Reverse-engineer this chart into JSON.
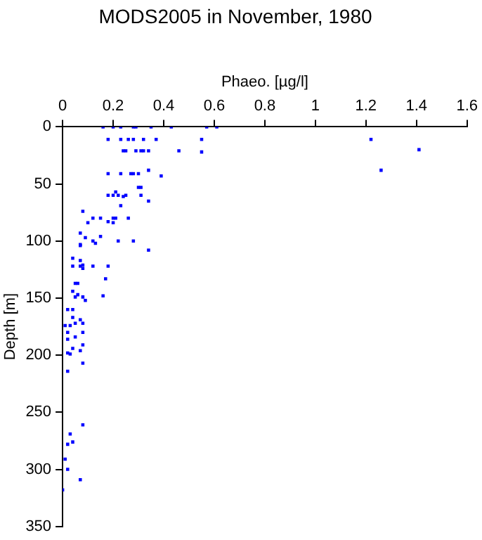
{
  "chart_data": {
    "type": "scatter",
    "title": "MODS2005 in November, 1980",
    "xlabel": "Phaeo. [µg/l]",
    "ylabel": "Depth [m]",
    "x": [
      0.16,
      0.2,
      0.23,
      0.28,
      0.29,
      0.35,
      0.43,
      0.57,
      0.61,
      0.18,
      0.23,
      0.26,
      0.28,
      0.32,
      0.37,
      0.55,
      1.22,
      1.41,
      1.26,
      0.24,
      0.25,
      0.29,
      0.31,
      0.32,
      0.34,
      0.46,
      0.55,
      0.18,
      0.23,
      0.27,
      0.28,
      0.3,
      0.34,
      0.39,
      0.3,
      0.31,
      0.18,
      0.2,
      0.22,
      0.25,
      0.31,
      0.24,
      0.21,
      0.34,
      0.23,
      0.08,
      0.12,
      0.15,
      0.2,
      0.21,
      0.26,
      0.18,
      0.1,
      0.2,
      0.07,
      0.09,
      0.15,
      0.12,
      0.13,
      0.07,
      0.22,
      0.28,
      0.34,
      0.07,
      0.04,
      0.07,
      0.08,
      0.04,
      0.07,
      0.08,
      0.12,
      0.18,
      0.17,
      0.05,
      0.06,
      0.04,
      0.06,
      0.05,
      0.08,
      0.09,
      0.16,
      0.02,
      0.04,
      0.04,
      0.07,
      0.08,
      0.01,
      0.03,
      0.05,
      0.02,
      0.08,
      0.02,
      0.05,
      0.08,
      0.04,
      0.07,
      0.02,
      0.03,
      0.08,
      0.02,
      0.08,
      0.03,
      0.04,
      0.02,
      0.01,
      0.02,
      0.07,
      0
    ],
    "series": [
      {
        "color": "#0000ff",
        "values": [
          0,
          0,
          0,
          0,
          0,
          0,
          0,
          0,
          0,
          11,
          11,
          11,
          11,
          11,
          11,
          11,
          11,
          20,
          38,
          21,
          21,
          21,
          21,
          21,
          21,
          21,
          22,
          41,
          41,
          41,
          41,
          41,
          38,
          43,
          53,
          53,
          60,
          60,
          60,
          60,
          60,
          61,
          57,
          65,
          69,
          74,
          80,
          80,
          80,
          80,
          80,
          83,
          84,
          84,
          93,
          97,
          96,
          100,
          102,
          103,
          100,
          100,
          108,
          104,
          115,
          117,
          121,
          122,
          122,
          124,
          122,
          122,
          133,
          137,
          137,
          144,
          147,
          149,
          149,
          152,
          148,
          160,
          160,
          167,
          169,
          172,
          174,
          174,
          172,
          180,
          180,
          186,
          184,
          191,
          194,
          196,
          198,
          199,
          207,
          214,
          261,
          269,
          276,
          278,
          291,
          300,
          309,
          318
        ]
      }
    ],
    "xlim": [
      0,
      1.6
    ],
    "xticks": [
      0,
      0.2,
      0.4,
      0.6,
      0.8,
      1,
      1.2,
      1.4,
      1.6
    ],
    "ylim": [
      350,
      0
    ],
    "yticks": [
      0,
      50,
      100,
      150,
      200,
      250,
      300,
      350
    ],
    "marker": "square",
    "grid": false,
    "legend": false
  }
}
